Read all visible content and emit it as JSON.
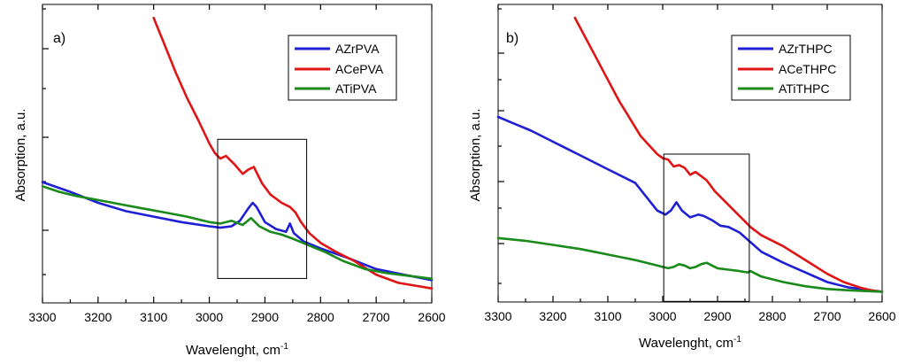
{
  "chart_data": [
    {
      "type": "line",
      "panel_label": "a)",
      "xlabel": "Wavelenght, cm",
      "xlabel_sup": "-1",
      "ylabel": "Absorption, a.u.",
      "xlim": [
        3300,
        2600
      ],
      "ylim": [
        0,
        1
      ],
      "x_ticks": [
        3300,
        3200,
        3100,
        3000,
        2900,
        2800,
        2700,
        2600
      ],
      "highlight_box": {
        "x_from": 2985,
        "x_to": 2825,
        "y_from": 0.056,
        "y_to": 0.56
      },
      "series": [
        {
          "name": "AZrPVA",
          "color": "#1f1fd6",
          "x": [
            3300,
            3250,
            3200,
            3150,
            3100,
            3050,
            3000,
            2980,
            2960,
            2945,
            2930,
            2922,
            2915,
            2900,
            2880,
            2862,
            2855,
            2848,
            2830,
            2800,
            2750,
            2700,
            2650,
            2600
          ],
          "y": [
            0.405,
            0.37,
            0.33,
            0.3,
            0.28,
            0.26,
            0.245,
            0.24,
            0.245,
            0.265,
            0.31,
            0.33,
            0.315,
            0.26,
            0.235,
            0.225,
            0.255,
            0.22,
            0.19,
            0.165,
            0.13,
            0.09,
            0.07,
            0.05
          ]
        },
        {
          "name": "ACePVA",
          "color": "#e01414",
          "x": [
            3100,
            3080,
            3060,
            3040,
            3020,
            3000,
            2990,
            2980,
            2970,
            2955,
            2940,
            2930,
            2920,
            2905,
            2890,
            2870,
            2855,
            2845,
            2835,
            2820,
            2800,
            2770,
            2740,
            2700,
            2660,
            2630,
            2600
          ],
          "y": [
            1.0,
            0.9,
            0.8,
            0.71,
            0.63,
            0.545,
            0.51,
            0.49,
            0.5,
            0.47,
            0.435,
            0.45,
            0.46,
            0.4,
            0.36,
            0.33,
            0.315,
            0.295,
            0.26,
            0.22,
            0.185,
            0.15,
            0.12,
            0.07,
            0.04,
            0.03,
            0.02
          ]
        },
        {
          "name": "ATiPVA",
          "color": "#1a8a1a",
          "x": [
            3300,
            3270,
            3240,
            3200,
            3160,
            3120,
            3080,
            3040,
            3000,
            2980,
            2960,
            2940,
            2925,
            2910,
            2890,
            2870,
            2850,
            2820,
            2790,
            2760,
            2720,
            2680,
            2640,
            2600
          ],
          "y": [
            0.39,
            0.37,
            0.355,
            0.34,
            0.325,
            0.31,
            0.295,
            0.28,
            0.26,
            0.255,
            0.265,
            0.25,
            0.275,
            0.245,
            0.225,
            0.215,
            0.2,
            0.175,
            0.15,
            0.12,
            0.09,
            0.075,
            0.065,
            0.055
          ]
        }
      ],
      "legend": {
        "position": "top-right",
        "entries": [
          "AZrPVA",
          "ACePVA",
          "ATiPVA"
        ]
      }
    },
    {
      "type": "line",
      "panel_label": "b)",
      "xlabel": "Wavelenght, cm",
      "xlabel_sup": "-1",
      "ylabel": "Absorption, a.u.",
      "xlim": [
        3300,
        2600
      ],
      "ylim": [
        0,
        1
      ],
      "x_ticks": [
        3300,
        3200,
        3100,
        3000,
        2900,
        2800,
        2700,
        2600
      ],
      "highlight_box": {
        "x_from": 2998,
        "x_to": 2842,
        "y_from": -0.03,
        "y_to": 0.505
      },
      "series": [
        {
          "name": "AZrTHPC",
          "color": "#1f1fd6",
          "x": [
            3300,
            3270,
            3240,
            3200,
            3150,
            3100,
            3050,
            3010,
            2995,
            2985,
            2975,
            2965,
            2950,
            2935,
            2925,
            2910,
            2895,
            2880,
            2860,
            2840,
            2820,
            2780,
            2740,
            2700,
            2660,
            2620,
            2600
          ],
          "y": [
            0.64,
            0.615,
            0.59,
            0.55,
            0.5,
            0.45,
            0.4,
            0.3,
            0.285,
            0.3,
            0.33,
            0.3,
            0.275,
            0.285,
            0.28,
            0.265,
            0.245,
            0.24,
            0.22,
            0.185,
            0.15,
            0.11,
            0.075,
            0.04,
            0.02,
            0.01,
            0.005
          ]
        },
        {
          "name": "ACeTHPC",
          "color": "#e01414",
          "x": [
            3160,
            3120,
            3080,
            3040,
            3010,
            3000,
            2990,
            2980,
            2970,
            2960,
            2950,
            2940,
            2930,
            2920,
            2905,
            2890,
            2870,
            2850,
            2840,
            2820,
            2780,
            2740,
            2700,
            2670,
            2640,
            2620,
            2600
          ],
          "y": [
            1.0,
            0.85,
            0.7,
            0.57,
            0.505,
            0.49,
            0.485,
            0.46,
            0.465,
            0.455,
            0.43,
            0.44,
            0.425,
            0.41,
            0.37,
            0.34,
            0.3,
            0.26,
            0.24,
            0.21,
            0.17,
            0.12,
            0.07,
            0.04,
            0.02,
            0.01,
            0.005
          ]
        },
        {
          "name": "ATiTHPC",
          "color": "#1a8a1a",
          "x": [
            3300,
            3250,
            3200,
            3150,
            3100,
            3050,
            3010,
            3000,
            2990,
            2980,
            2970,
            2960,
            2950,
            2940,
            2930,
            2920,
            2910,
            2900,
            2880,
            2860,
            2845,
            2840,
            2820,
            2780,
            2740,
            2700,
            2660,
            2600
          ],
          "y": [
            0.2,
            0.19,
            0.175,
            0.16,
            0.14,
            0.12,
            0.1,
            0.095,
            0.09,
            0.095,
            0.105,
            0.1,
            0.09,
            0.095,
            0.105,
            0.11,
            0.1,
            0.09,
            0.085,
            0.08,
            0.075,
            0.08,
            0.06,
            0.04,
            0.025,
            0.015,
            0.01,
            0.005
          ]
        }
      ],
      "legend": {
        "position": "top-right",
        "entries": [
          "AZrTHPC",
          "ACeTHPC",
          "ATiTHPC"
        ]
      }
    }
  ]
}
